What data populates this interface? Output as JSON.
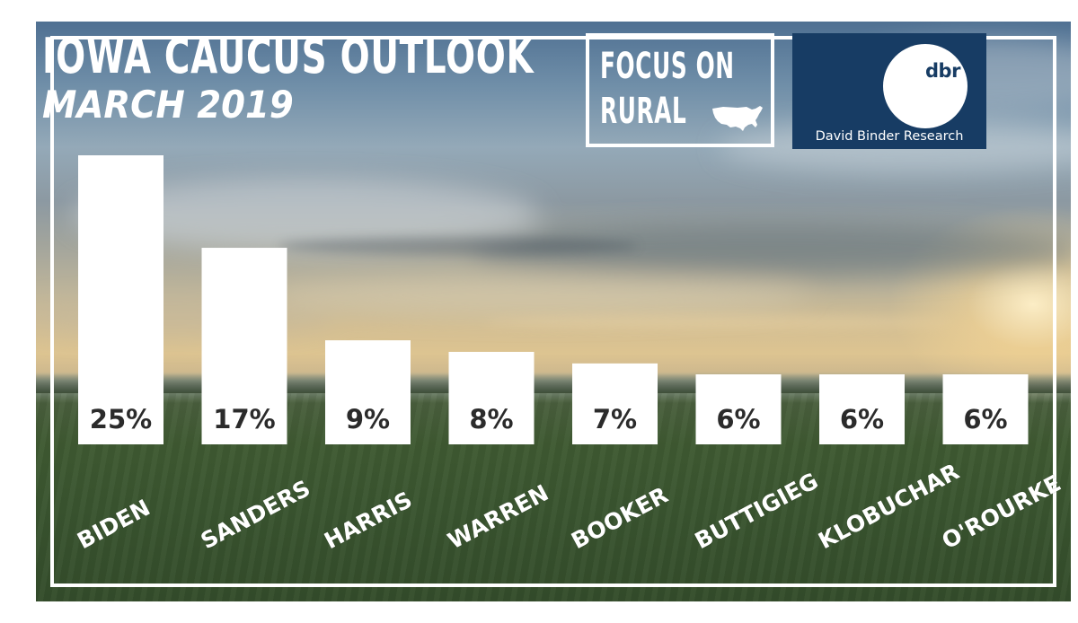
{
  "header": {
    "title": "IOWA CAUCUS OUTLOOK",
    "subtitle": "MARCH 2019"
  },
  "logos": {
    "focus_line1": "FOCUS ON",
    "focus_line2": "RURAL",
    "focus_map_icon": "usa-map-icon",
    "dbr_mark": "dbr",
    "dbr_name": "David Binder Research"
  },
  "colors": {
    "bar": "#ffffff",
    "bar_label": "#2b2b2b",
    "category_label": "#ffffff",
    "dbr_navy": "#173c64"
  },
  "chart_data": {
    "type": "bar",
    "title": "IOWA CAUCUS OUTLOOK",
    "subtitle": "MARCH 2019",
    "xlabel": "",
    "ylabel": "",
    "categories": [
      "BIDEN",
      "SANDERS",
      "HARRIS",
      "WARREN",
      "BOOKER",
      "BUTTIGIEG",
      "KLOBUCHAR",
      "O'ROURKE"
    ],
    "values": [
      25,
      17,
      9,
      8,
      7,
      6,
      6,
      6
    ],
    "data_labels": [
      "25%",
      "17%",
      "9%",
      "8%",
      "7%",
      "6%",
      "6%",
      "6%"
    ],
    "unit": "%",
    "ylim": [
      0,
      25
    ],
    "grid": false,
    "legend": "none"
  }
}
